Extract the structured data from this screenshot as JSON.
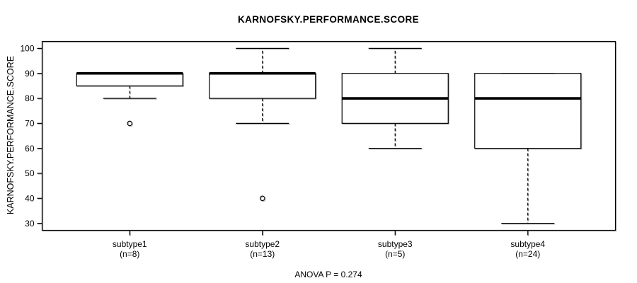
{
  "chart_data": {
    "type": "boxplot",
    "title": "KARNOFSKY.PERFORMANCE.SCORE",
    "ylabel": "KARNOFSKY.PERFORMANCE.SCORE",
    "xlabel": "",
    "annotation": "ANOVA P = 0.274",
    "anova_p": 0.274,
    "y_ticks": [
      100,
      90,
      80,
      70,
      60,
      50,
      40,
      30
    ],
    "ylim": [
      27.2,
      102.8
    ],
    "grid": false,
    "box_fill": "#ffffff",
    "line_color": "#000000",
    "groups": [
      {
        "label": "subtype1",
        "sublabel": "(n=8)",
        "n": 8,
        "whisker_low": 80,
        "q1": 85,
        "median": 90,
        "q3": 90,
        "whisker_high": 90,
        "outliers": [
          70
        ]
      },
      {
        "label": "subtype2",
        "sublabel": "(n=13)",
        "n": 13,
        "whisker_low": 70,
        "q1": 80,
        "median": 90,
        "q3": 90,
        "whisker_high": 100,
        "outliers": [
          40
        ]
      },
      {
        "label": "subtype3",
        "sublabel": "(n=5)",
        "n": 5,
        "whisker_low": 60,
        "q1": 70,
        "median": 80,
        "q3": 90,
        "whisker_high": 100,
        "outliers": []
      },
      {
        "label": "subtype4",
        "sublabel": "(n=24)",
        "n": 24,
        "whisker_low": 30,
        "q1": 60,
        "median": 80,
        "q3": 90,
        "whisker_high": 90,
        "outliers": []
      }
    ]
  }
}
